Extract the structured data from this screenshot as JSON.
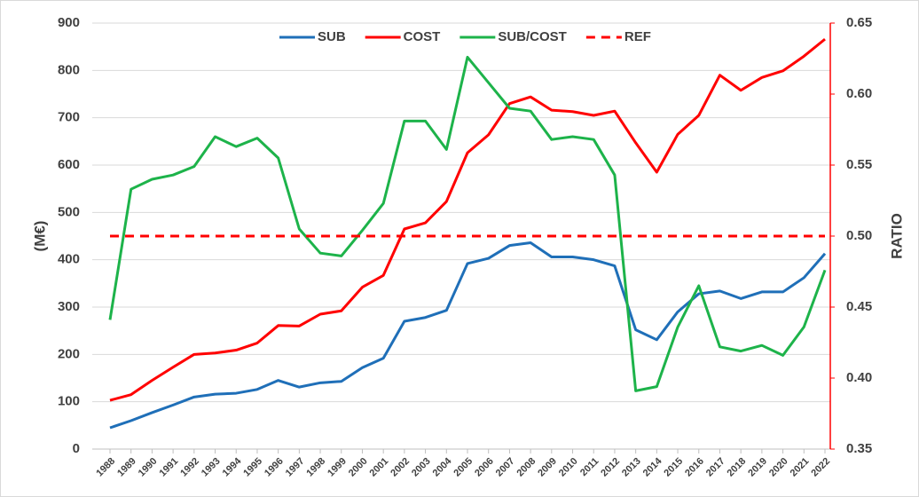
{
  "chart_data": {
    "type": "line",
    "y_label": "(M€)",
    "y2_label": "RATIO",
    "categories": [
      "1988",
      "1989",
      "1990",
      "1991",
      "1992",
      "1993",
      "1994",
      "1995",
      "1996",
      "1997",
      "1998",
      "1999",
      "2000",
      "2001",
      "2002",
      "2003",
      "2004",
      "2005",
      "2006",
      "2007",
      "2008",
      "2009",
      "2010",
      "2011",
      "2012",
      "2013",
      "2014",
      "2015",
      "2016",
      "2017",
      "2018",
      "2019",
      "2020",
      "2021",
      "2022"
    ],
    "series": [
      {
        "name": "SUB",
        "color": "#1f6fb8",
        "axis": "y",
        "values": [
          45,
          60,
          77,
          93,
          110,
          116,
          118,
          126,
          145,
          131,
          140,
          143,
          172,
          192,
          270,
          278,
          293,
          392,
          403,
          430,
          436,
          406,
          406,
          400,
          387,
          252,
          231,
          290,
          328,
          334,
          318,
          332,
          332,
          362,
          413
        ]
      },
      {
        "name": "COST",
        "color": "#ff0000",
        "axis": "y",
        "values": [
          103,
          115,
          145,
          173,
          200,
          203,
          209,
          224,
          261,
          260,
          285,
          292,
          342,
          367,
          465,
          478,
          523,
          626,
          664,
          730,
          744,
          716,
          713,
          705,
          714,
          647,
          585,
          665,
          705,
          790,
          758,
          785,
          799,
          830,
          866
        ]
      },
      {
        "name": "SUB/COST",
        "color": "#1db34a",
        "axis": "y2",
        "values": [
          0.441,
          0.533,
          0.54,
          0.543,
          0.549,
          0.57,
          0.563,
          0.569,
          0.555,
          0.505,
          0.488,
          0.486,
          0.504,
          0.523,
          0.581,
          0.581,
          0.561,
          0.626,
          0.608,
          0.59,
          0.588,
          0.568,
          0.57,
          0.568,
          0.543,
          0.391,
          0.394,
          0.436,
          0.465,
          0.422,
          0.419,
          0.423,
          0.416,
          0.436,
          0.476
        ]
      },
      {
        "name": "REF",
        "color": "#ff0000",
        "axis": "y2",
        "dashed": true,
        "values": [
          0.5,
          0.5,
          0.5,
          0.5,
          0.5,
          0.5,
          0.5,
          0.5,
          0.5,
          0.5,
          0.5,
          0.5,
          0.5,
          0.5,
          0.5,
          0.5,
          0.5,
          0.5,
          0.5,
          0.5,
          0.5,
          0.5,
          0.5,
          0.5,
          0.5,
          0.5,
          0.5,
          0.5,
          0.5,
          0.5,
          0.5,
          0.5,
          0.5,
          0.5,
          0.5
        ]
      }
    ],
    "ylim": [
      0,
      900
    ],
    "yticks": [
      0,
      100,
      200,
      300,
      400,
      500,
      600,
      700,
      800,
      900
    ],
    "y2lim": [
      0.35,
      0.65
    ],
    "y2ticks": [
      0.35,
      {
        "value": 0.4,
        "label": "0.40"
      },
      0.45,
      {
        "value": 0.5,
        "label": "0.50"
      },
      0.55,
      {
        "value": 0.6,
        "label": "0.60"
      },
      0.65
    ],
    "y2_color": "#ff0000",
    "grid": true,
    "legend": "top"
  }
}
